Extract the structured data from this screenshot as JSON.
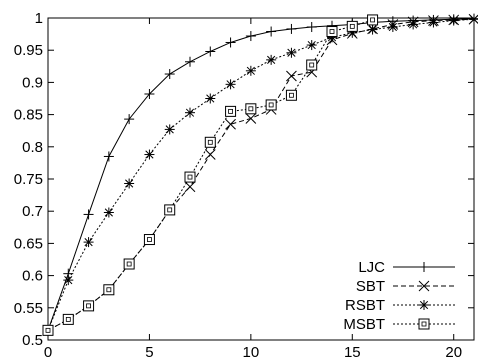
{
  "chart_data": {
    "type": "line",
    "title": "",
    "xlabel": "",
    "ylabel": "",
    "xlim": [
      0,
      21
    ],
    "ylim": [
      0.5,
      1.0
    ],
    "x_ticks": [
      0,
      5,
      10,
      15,
      20
    ],
    "y_ticks": [
      0.5,
      0.55,
      0.6,
      0.65,
      0.7,
      0.75,
      0.8,
      0.85,
      0.9,
      0.95,
      1
    ],
    "x_tick_labels": [
      "0",
      "5",
      "10",
      "15",
      "20"
    ],
    "y_tick_labels": [
      "0.5",
      "0.55",
      "0.6",
      "0.65",
      "0.7",
      "0.75",
      "0.8",
      "0.85",
      "0.9",
      "0.95",
      "1"
    ],
    "grid": false,
    "legend_position": "bottom-right",
    "series": [
      {
        "name": "LJC",
        "marker": "plus",
        "dash": "solid",
        "x": [
          0,
          1,
          2,
          3,
          4,
          5,
          6,
          7,
          8,
          9,
          10,
          11,
          12,
          13,
          14,
          15,
          16,
          17,
          18,
          19,
          20,
          21
        ],
        "y": [
          0.515,
          0.603,
          0.695,
          0.785,
          0.843,
          0.882,
          0.913,
          0.932,
          0.948,
          0.962,
          0.972,
          0.979,
          0.983,
          0.986,
          0.988,
          0.99,
          0.993,
          0.995,
          0.996,
          0.997,
          0.998,
          0.999
        ]
      },
      {
        "name": "SBT",
        "marker": "cross",
        "dash": "dashed",
        "x": [
          0,
          1,
          2,
          3,
          4,
          5,
          6,
          7,
          8,
          9,
          10,
          11,
          12,
          13,
          14,
          15,
          16,
          17,
          18,
          19,
          20,
          21
        ],
        "y": [
          0.515,
          0.532,
          0.553,
          0.578,
          0.618,
          0.656,
          0.702,
          0.738,
          0.788,
          0.835,
          0.844,
          0.858,
          0.91,
          0.916,
          0.966,
          0.976,
          0.983,
          0.99,
          0.994,
          0.996,
          0.997,
          0.998
        ]
      },
      {
        "name": "RSBT",
        "marker": "star",
        "dash": "dotted",
        "x": [
          0,
          1,
          2,
          3,
          4,
          5,
          6,
          7,
          8,
          9,
          10,
          11,
          12,
          13,
          14,
          15,
          16,
          17,
          18,
          19,
          20,
          21
        ],
        "y": [
          0.515,
          0.593,
          0.652,
          0.698,
          0.743,
          0.788,
          0.827,
          0.853,
          0.875,
          0.897,
          0.918,
          0.935,
          0.946,
          0.958,
          0.97,
          0.977,
          0.982,
          0.986,
          0.99,
          0.993,
          0.996,
          0.998
        ]
      },
      {
        "name": "MSBT",
        "marker": "square",
        "dash": "dotted",
        "x": [
          0,
          1,
          2,
          3,
          4,
          5,
          6,
          7,
          8,
          9,
          10,
          11,
          12,
          13,
          14,
          15,
          16
        ],
        "y": [
          0.515,
          0.532,
          0.553,
          0.578,
          0.618,
          0.656,
          0.702,
          0.753,
          0.807,
          0.855,
          0.859,
          0.865,
          0.88,
          0.927,
          0.979,
          0.987,
          0.997
        ]
      }
    ]
  }
}
